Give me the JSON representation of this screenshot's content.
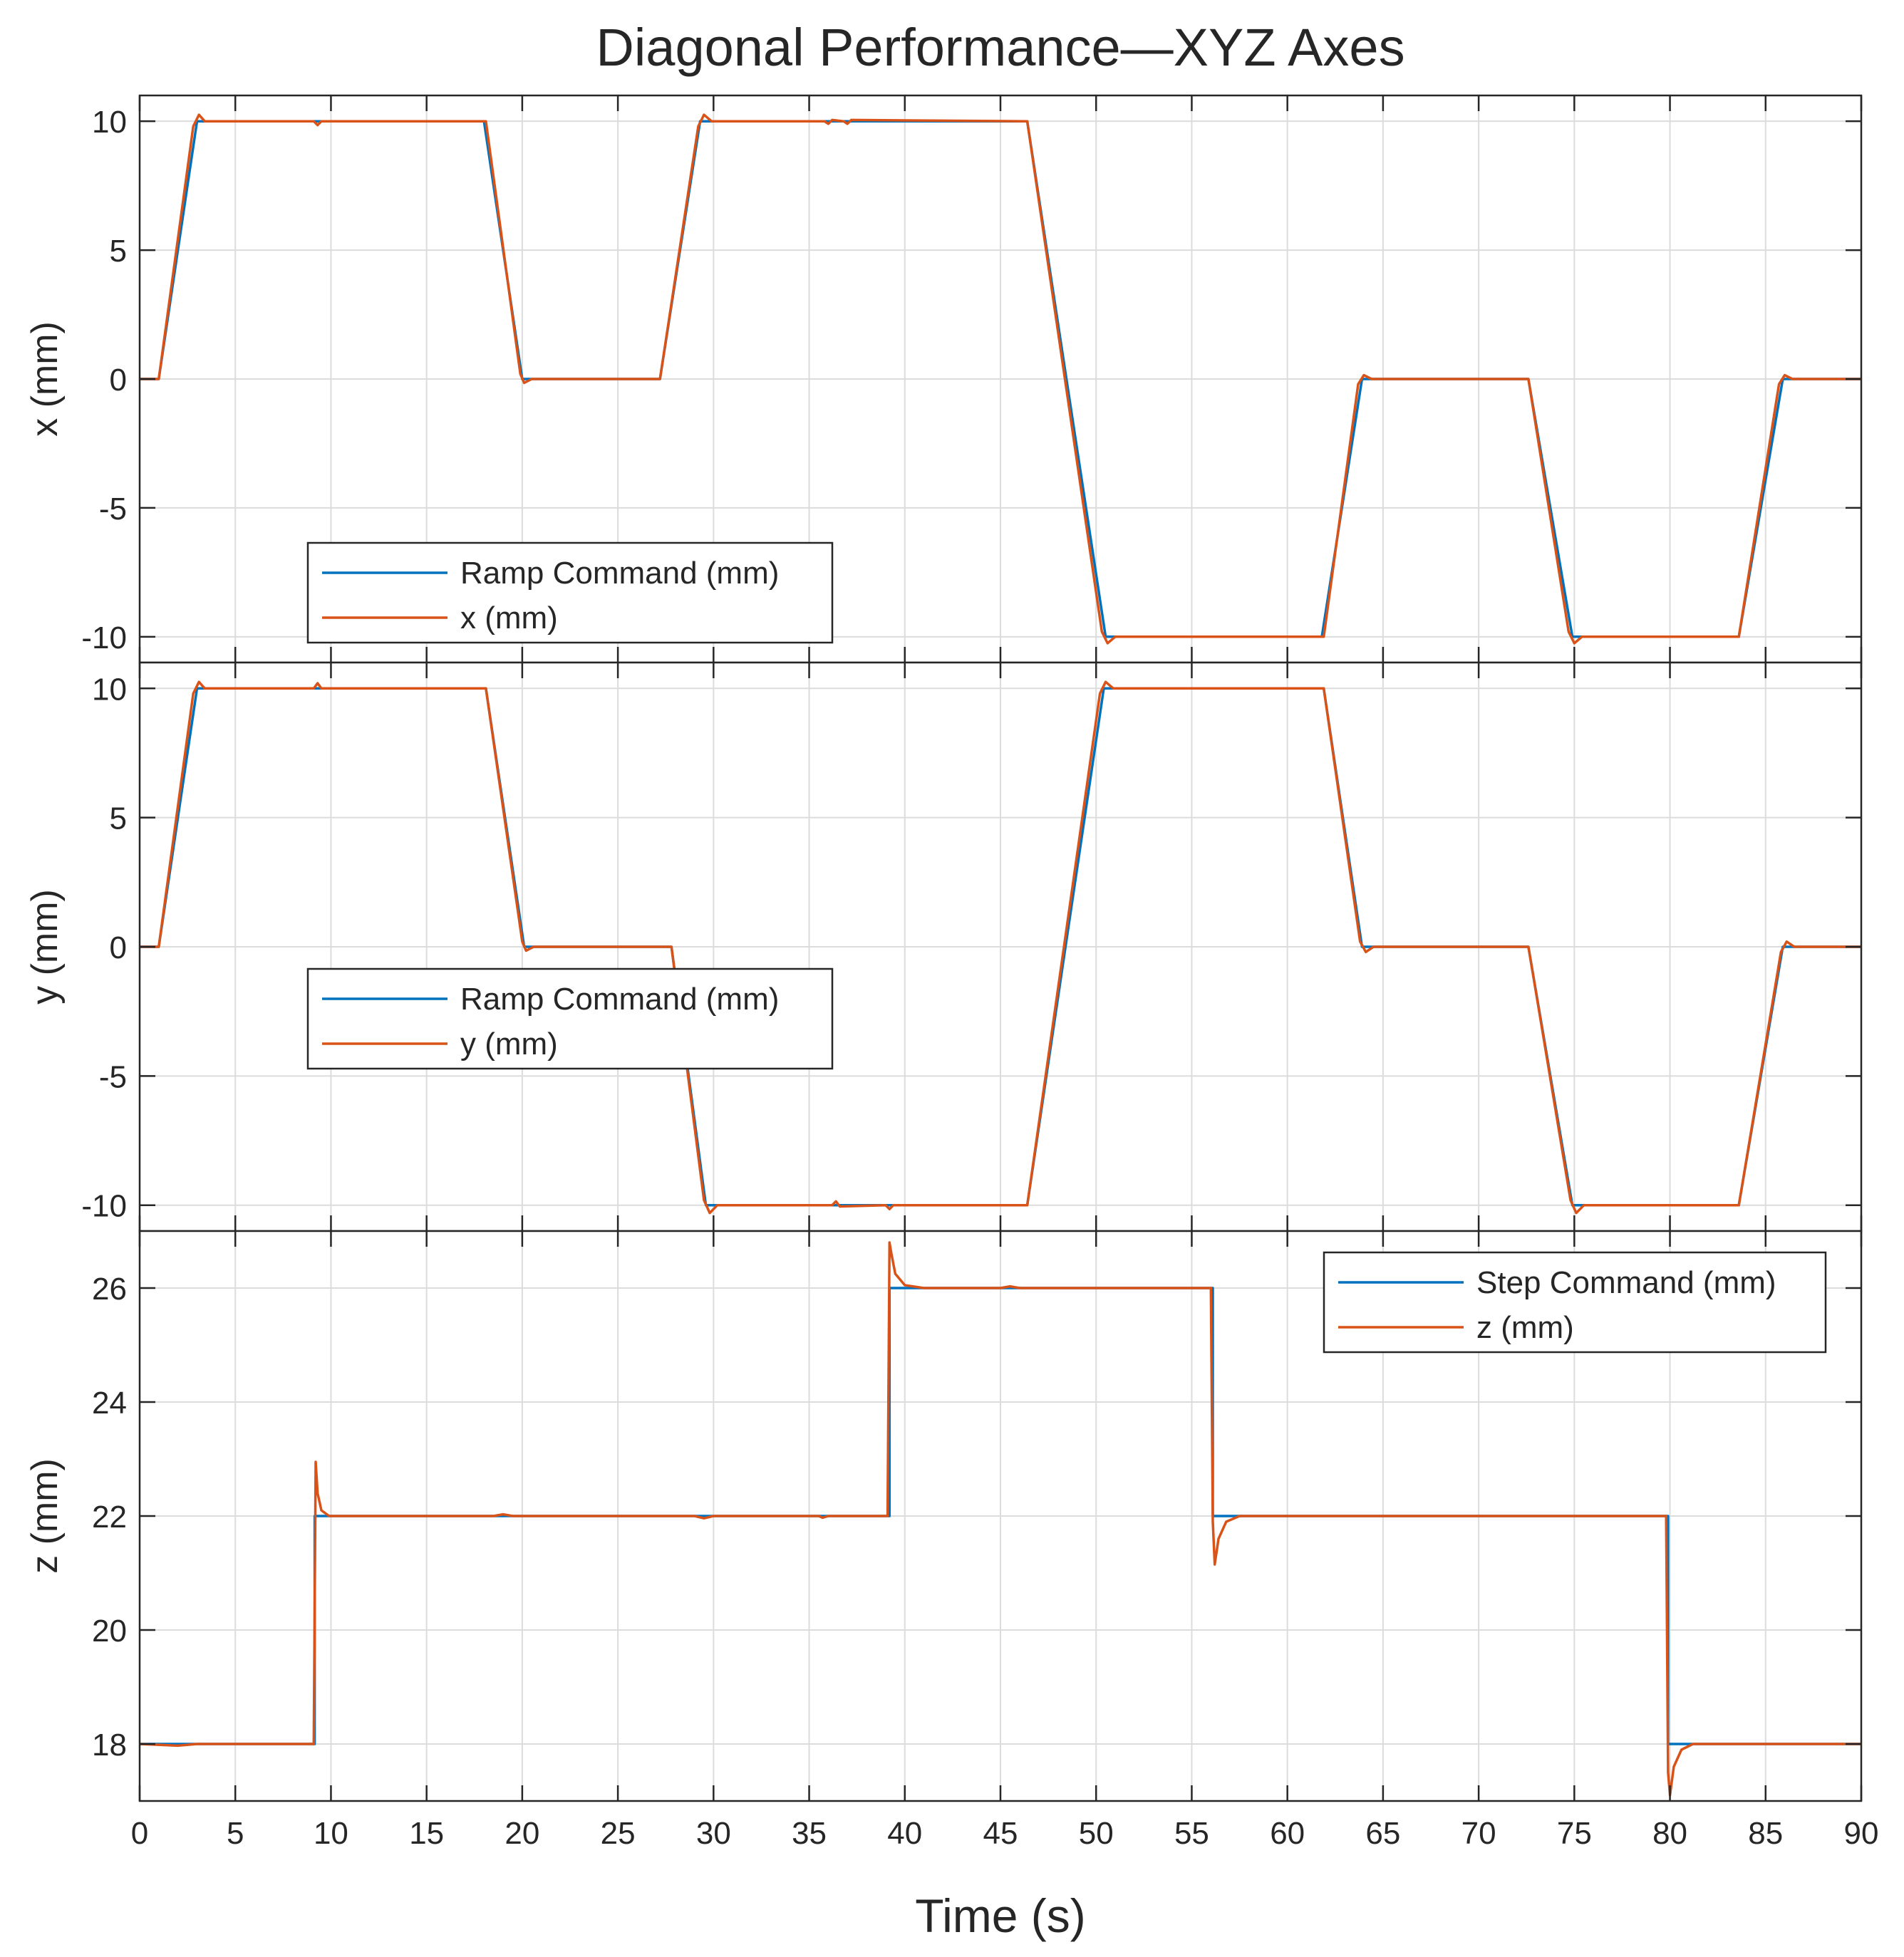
{
  "chart_data": {
    "type": "line",
    "title": "Diagonal Performance—XYZ Axes",
    "xlabel": "Time (s)",
    "xlim": [
      0,
      90
    ],
    "xticks": [
      0,
      5,
      10,
      15,
      20,
      25,
      30,
      35,
      40,
      45,
      50,
      55,
      60,
      65,
      70,
      75,
      80,
      85,
      90
    ],
    "grid": true,
    "colors": {
      "command": "#0072BD",
      "response": "#D95319",
      "grid": "#dcdcdc",
      "axis": "#262626"
    },
    "panels": [
      {
        "id": "x",
        "ylabel": "x (mm)",
        "ylim": [
          -11,
          11
        ],
        "yticks": [
          -10,
          -5,
          0,
          5,
          10
        ],
        "legend_position": "bottom-left",
        "series": [
          {
            "name": "Ramp Command (mm)",
            "x": [
              0,
              1,
              3,
              18,
              20,
              27.2,
              29.3,
              46.4,
              50.5,
              61.8,
              63.9,
              72.6,
              74.9,
              83.6,
              85.9,
              90
            ],
            "y": [
              0,
              0,
              10,
              10,
              0,
              0,
              10,
              10,
              -10,
              -10,
              0,
              0,
              -10,
              -10,
              0,
              0
            ]
          },
          {
            "name": "x (mm)",
            "x": [
              0,
              1,
              2.8,
              3.1,
              3.4,
              9.1,
              9.3,
              9.5,
              18.1,
              19.9,
              20.1,
              20.5,
              27.2,
              29.2,
              29.5,
              29.9,
              35.8,
              36.0,
              36.2,
              36.8,
              37.0,
              37.2,
              46.4,
              50.3,
              50.6,
              51.0,
              61.9,
              63.7,
              64.0,
              64.4,
              72.6,
              74.7,
              75.0,
              75.4,
              83.6,
              85.7,
              86.0,
              86.4,
              90
            ],
            "y": [
              0,
              0,
              9.8,
              10.25,
              10,
              10,
              9.85,
              10,
              10,
              0.2,
              -0.15,
              0,
              0,
              9.8,
              10.25,
              10,
              10,
              9.9,
              10.05,
              10,
              9.9,
              10.05,
              10,
              -9.8,
              -10.25,
              -10,
              -10,
              -0.2,
              0.15,
              0,
              0,
              -9.8,
              -10.25,
              -10,
              -10,
              -0.2,
              0.15,
              0,
              0
            ]
          }
        ]
      },
      {
        "id": "y",
        "ylabel": "y (mm)",
        "ylim": [
          -11,
          11
        ],
        "yticks": [
          -10,
          -5,
          0,
          5,
          10
        ],
        "legend_position": "middle-left",
        "series": [
          {
            "name": "Ramp Command (mm)",
            "x": [
              0,
              1,
              3,
              18.1,
              20.1,
              27.8,
              29.6,
              46.4,
              50.4,
              61.9,
              63.9,
              72.6,
              74.9,
              83.6,
              85.9,
              90
            ],
            "y": [
              0,
              0,
              10,
              10,
              0,
              0,
              -10,
              -10,
              10,
              10,
              0,
              0,
              -10,
              -10,
              0,
              0
            ]
          },
          {
            "name": "y (mm)",
            "x": [
              0,
              1,
              2.8,
              3.1,
              3.4,
              9.1,
              9.3,
              9.5,
              18.1,
              20.0,
              20.2,
              20.6,
              27.8,
              29.5,
              29.8,
              30.2,
              36.2,
              36.4,
              36.6,
              39.0,
              39.2,
              39.4,
              46.4,
              50.2,
              50.5,
              50.9,
              61.9,
              63.8,
              64.1,
              64.5,
              72.6,
              74.8,
              75.1,
              75.5,
              83.6,
              85.8,
              86.1,
              86.5,
              90
            ],
            "y": [
              0,
              0,
              9.8,
              10.25,
              10,
              10,
              10.2,
              10,
              10,
              0.2,
              -0.15,
              0,
              0,
              -9.8,
              -10.3,
              -10,
              -10,
              -9.85,
              -10.05,
              -10,
              -10.15,
              -10,
              -10,
              9.8,
              10.25,
              10,
              10,
              0.2,
              -0.2,
              0,
              0,
              -9.8,
              -10.3,
              -10,
              -10,
              -0.2,
              0.2,
              0,
              0
            ]
          }
        ]
      },
      {
        "id": "z",
        "ylabel": "z (mm)",
        "ylim": [
          17,
          27
        ],
        "yticks": [
          18,
          20,
          22,
          24,
          26
        ],
        "legend_position": "top-right",
        "series": [
          {
            "name": "Step Command (mm)",
            "x": [
              0,
              9.15,
              9.15,
              39.2,
              39.2,
              56.1,
              56.1,
              79.9,
              79.9,
              90
            ],
            "y": [
              18,
              18,
              22,
              22,
              26,
              26,
              22,
              22,
              18,
              18
            ]
          },
          {
            "name": "z (mm)",
            "x": [
              0,
              2.0,
              3.0,
              9.1,
              9.2,
              9.3,
              9.5,
              9.9,
              18.5,
              19.0,
              19.5,
              29.0,
              29.5,
              30.0,
              35.5,
              35.7,
              36.0,
              39.1,
              39.2,
              39.3,
              39.5,
              40.0,
              41.0,
              45.0,
              45.5,
              46.0,
              56.0,
              56.1,
              56.2,
              56.4,
              56.8,
              57.5,
              79.8,
              79.9,
              80.0,
              80.2,
              80.6,
              81.2,
              90
            ],
            "y": [
              18,
              17.97,
              18,
              18,
              22.95,
              22.4,
              22.1,
              22,
              22,
              22.03,
              22,
              22,
              21.96,
              22,
              22,
              21.97,
              22,
              22,
              26.8,
              26.6,
              26.25,
              26.05,
              26,
              26,
              26.03,
              26,
              26,
              21.9,
              21.15,
              21.6,
              21.9,
              22,
              22,
              17.5,
              17.1,
              17.6,
              17.9,
              18,
              18
            ]
          }
        ]
      }
    ]
  }
}
